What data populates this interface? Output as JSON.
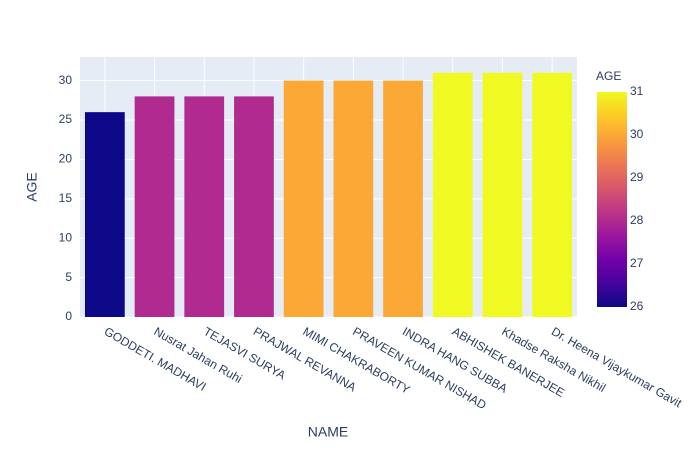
{
  "chart_data": {
    "type": "bar",
    "categories": [
      "GODDETI. MADHAVI",
      "Nusrat Jahan Ruhi",
      "TEJASVI SURYA",
      "PRAJWAL REVANNA",
      "MIMI CHAKRABORTY",
      "PRAVEEN KUMAR NISHAD",
      "INDRA HANG SUBBA",
      "ABHISHEK BANERJEE",
      "Khadse Raksha Nikhil",
      "Dr. Heena Vijaykumar Gavit"
    ],
    "values": [
      26,
      28,
      28,
      28,
      30,
      30,
      30,
      31,
      31,
      31
    ],
    "x_label": "NAME",
    "y_label": "AGE",
    "ylim": [
      0,
      33
    ],
    "yticks": [
      0,
      5,
      10,
      15,
      20,
      25,
      30
    ],
    "grid": true,
    "colorbar": {
      "title": "AGE",
      "lim": [
        26,
        31
      ],
      "ticks": [
        26,
        27,
        28,
        29,
        30,
        31
      ],
      "colorscale": [
        "#0d0887",
        "#46039f",
        "#7201a8",
        "#9c179e",
        "#bd3786",
        "#d8576b",
        "#ed7953",
        "#fb9f3a",
        "#fdca26",
        "#f0f921"
      ]
    }
  }
}
